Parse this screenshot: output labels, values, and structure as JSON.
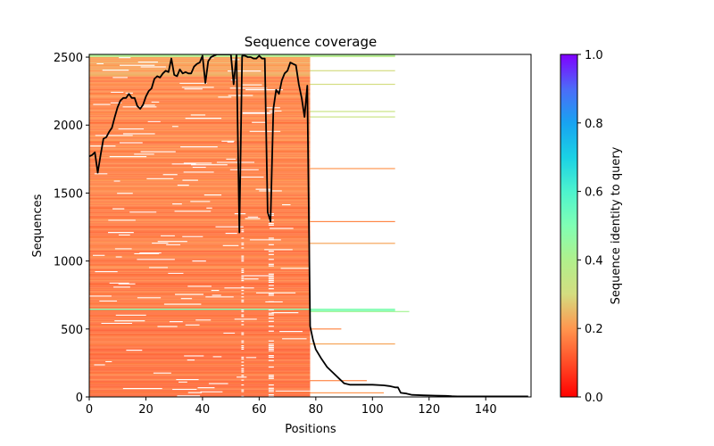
{
  "chart_data": {
    "type": "heatmap",
    "title": "Sequence coverage",
    "xlabel": "Positions",
    "ylabel": "Sequences",
    "xlim": [
      0,
      156
    ],
    "ylim": [
      0,
      2520
    ],
    "xticks": [
      0,
      20,
      40,
      60,
      80,
      100,
      120,
      140
    ],
    "yticks": [
      0,
      500,
      1000,
      1500,
      2000,
      2500
    ],
    "colorbar": {
      "label": "Sequence identity to query",
      "colormap": "rainbow_r",
      "range": [
        0.0,
        1.0
      ],
      "ticks": [
        "0.0",
        "0.2",
        "0.4",
        "0.6",
        "0.8",
        "1.0"
      ]
    },
    "heatmap_bands": [
      {
        "seq_range": [
          0,
          640
        ],
        "pos_range": [
          0,
          78
        ],
        "identity": 0.15
      },
      {
        "seq_range": [
          640,
          650
        ],
        "pos_range": [
          0,
          108
        ],
        "identity": 0.48
      },
      {
        "seq_range": [
          650,
          1400
        ],
        "pos_range": [
          0,
          78
        ],
        "identity": 0.16
      },
      {
        "seq_range": [
          1400,
          2360
        ],
        "pos_range": [
          0,
          78
        ],
        "identity": 0.17
      },
      {
        "seq_range": [
          2360,
          2500
        ],
        "pos_range": [
          0,
          78
        ],
        "identity": 0.22
      },
      {
        "seq_range": [
          2500,
          2520
        ],
        "pos_range": [
          0,
          108
        ],
        "identity": 0.38
      }
    ],
    "sparse_extensions": [
      {
        "seq": 30,
        "pos_range": [
          78,
          104
        ],
        "identity": 0.2
      },
      {
        "seq": 120,
        "pos_range": [
          78,
          98
        ],
        "identity": 0.18
      },
      {
        "seq": 390,
        "pos_range": [
          78,
          108
        ],
        "identity": 0.22
      },
      {
        "seq": 500,
        "pos_range": [
          78,
          89
        ],
        "identity": 0.18
      },
      {
        "seq": 635,
        "pos_range": [
          78,
          108
        ],
        "identity": 0.52
      },
      {
        "seq": 628,
        "pos_range": [
          78,
          113
        ],
        "identity": 0.42
      },
      {
        "seq": 1130,
        "pos_range": [
          78,
          108
        ],
        "identity": 0.22
      },
      {
        "seq": 1290,
        "pos_range": [
          78,
          108
        ],
        "identity": 0.18
      },
      {
        "seq": 1680,
        "pos_range": [
          78,
          108
        ],
        "identity": 0.2
      },
      {
        "seq": 2060,
        "pos_range": [
          78,
          108
        ],
        "identity": 0.33
      },
      {
        "seq": 2100,
        "pos_range": [
          78,
          108
        ],
        "identity": 0.33
      },
      {
        "seq": 2300,
        "pos_range": [
          78,
          108
        ],
        "identity": 0.3
      },
      {
        "seq": 2400,
        "pos_range": [
          78,
          108
        ],
        "identity": 0.3
      }
    ],
    "series": [
      {
        "name": "coverage",
        "color": "#000000",
        "x": [
          0,
          1,
          2,
          3,
          4,
          5,
          6,
          7,
          8,
          9,
          10,
          11,
          12,
          13,
          14,
          15,
          16,
          17,
          18,
          19,
          20,
          21,
          22,
          23,
          24,
          25,
          26,
          27,
          28,
          29,
          30,
          31,
          32,
          33,
          34,
          35,
          36,
          37,
          38,
          39,
          40,
          41,
          42,
          43,
          44,
          45,
          46,
          47,
          48,
          49,
          50,
          51,
          52,
          53,
          54,
          55,
          56,
          57,
          58,
          59,
          60,
          61,
          62,
          63,
          64,
          65,
          66,
          67,
          68,
          69,
          70,
          71,
          72,
          73,
          74,
          75,
          76,
          77,
          78,
          79,
          80,
          82,
          84,
          86,
          88,
          90,
          92,
          96,
          100,
          104,
          106,
          108,
          109,
          110,
          112,
          114,
          118,
          122,
          126,
          128,
          130,
          140,
          150,
          155
        ],
        "y": [
          1770,
          1780,
          1800,
          1650,
          1780,
          1900,
          1910,
          1950,
          1980,
          2060,
          2130,
          2180,
          2200,
          2200,
          2230,
          2200,
          2200,
          2140,
          2120,
          2150,
          2210,
          2250,
          2270,
          2340,
          2360,
          2350,
          2380,
          2400,
          2390,
          2490,
          2370,
          2360,
          2410,
          2380,
          2390,
          2380,
          2380,
          2430,
          2450,
          2460,
          2510,
          2310,
          2470,
          2500,
          2510,
          2520,
          2520,
          2520,
          2520,
          2520,
          2520,
          2300,
          2520,
          1210,
          2510,
          2510,
          2500,
          2500,
          2490,
          2490,
          2510,
          2490,
          2490,
          1360,
          1290,
          2120,
          2260,
          2230,
          2330,
          2380,
          2400,
          2460,
          2450,
          2440,
          2300,
          2200,
          2060,
          2290,
          520,
          420,
          350,
          280,
          220,
          180,
          140,
          100,
          90,
          90,
          90,
          85,
          80,
          70,
          70,
          30,
          25,
          15,
          12,
          10,
          8,
          5,
          4,
          4,
          4,
          4
        ]
      }
    ]
  }
}
